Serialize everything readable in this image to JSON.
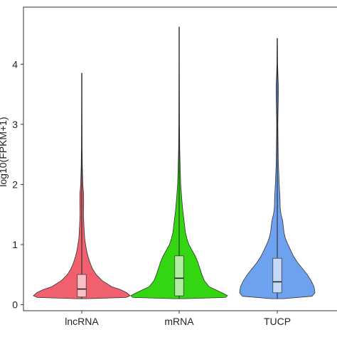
{
  "chart_data": {
    "type": "violin",
    "title": "",
    "xlabel": "",
    "ylabel": "log10(FPKM+1)",
    "ylim": [
      -0.1,
      4.95
    ],
    "yticks": [
      0,
      1,
      2,
      3,
      4
    ],
    "grid": false,
    "legend": "none",
    "categories": [
      "lncRNA",
      "mRNA",
      "TUCP"
    ],
    "series": [
      {
        "category": "lncRNA",
        "color": "#F0606E",
        "min": 0.1,
        "max": 3.85,
        "box": {
          "q1": 0.13,
          "median": 0.26,
          "q3": 0.5
        },
        "profile": [
          [
            0.1,
            0.1
          ],
          [
            0.12,
            0.92
          ],
          [
            0.15,
            1.0
          ],
          [
            0.2,
            0.93
          ],
          [
            0.25,
            0.8
          ],
          [
            0.3,
            0.62
          ],
          [
            0.4,
            0.42
          ],
          [
            0.5,
            0.3
          ],
          [
            0.6,
            0.22
          ],
          [
            0.7,
            0.17
          ],
          [
            0.8,
            0.13
          ],
          [
            0.9,
            0.1
          ],
          [
            1.0,
            0.08
          ],
          [
            1.1,
            0.06
          ],
          [
            1.3,
            0.045
          ],
          [
            1.5,
            0.035
          ],
          [
            1.7,
            0.04
          ],
          [
            1.85,
            0.038
          ],
          [
            2.0,
            0.022
          ],
          [
            2.3,
            0.012
          ],
          [
            2.6,
            0.008
          ],
          [
            3.0,
            0.006
          ],
          [
            3.5,
            0.005
          ],
          [
            3.85,
            0.004
          ]
        ]
      },
      {
        "category": "mRNA",
        "color": "#33D611",
        "min": 0.1,
        "max": 4.62,
        "box": {
          "q1": 0.15,
          "median": 0.44,
          "q3": 0.81
        },
        "profile": [
          [
            0.1,
            0.1
          ],
          [
            0.12,
            0.96
          ],
          [
            0.15,
            1.0
          ],
          [
            0.2,
            0.88
          ],
          [
            0.3,
            0.62
          ],
          [
            0.4,
            0.52
          ],
          [
            0.5,
            0.47
          ],
          [
            0.6,
            0.43
          ],
          [
            0.7,
            0.39
          ],
          [
            0.8,
            0.34
          ],
          [
            0.9,
            0.27
          ],
          [
            1.0,
            0.2
          ],
          [
            1.1,
            0.16
          ],
          [
            1.2,
            0.13
          ],
          [
            1.4,
            0.1
          ],
          [
            1.6,
            0.07
          ],
          [
            1.8,
            0.05
          ],
          [
            2.0,
            0.032
          ],
          [
            2.3,
            0.02
          ],
          [
            2.6,
            0.012
          ],
          [
            3.0,
            0.008
          ],
          [
            3.5,
            0.006
          ],
          [
            4.0,
            0.005
          ],
          [
            4.62,
            0.004
          ]
        ]
      },
      {
        "category": "TUCP",
        "color": "#6EA2EE",
        "min": 0.1,
        "max": 4.43,
        "box": {
          "q1": 0.2,
          "median": 0.38,
          "q3": 0.77
        },
        "profile": [
          [
            0.1,
            0.12
          ],
          [
            0.14,
            0.72
          ],
          [
            0.2,
            0.78
          ],
          [
            0.3,
            0.76
          ],
          [
            0.4,
            0.7
          ],
          [
            0.5,
            0.62
          ],
          [
            0.6,
            0.52
          ],
          [
            0.7,
            0.42
          ],
          [
            0.8,
            0.34
          ],
          [
            0.9,
            0.28
          ],
          [
            1.0,
            0.22
          ],
          [
            1.1,
            0.17
          ],
          [
            1.2,
            0.14
          ],
          [
            1.4,
            0.11
          ],
          [
            1.5,
            0.08
          ],
          [
            1.6,
            0.06
          ],
          [
            1.8,
            0.055
          ],
          [
            2.0,
            0.04
          ],
          [
            2.4,
            0.02
          ],
          [
            3.0,
            0.012
          ],
          [
            3.4,
            0.02
          ],
          [
            3.6,
            0.025
          ],
          [
            3.8,
            0.015
          ],
          [
            4.0,
            0.008
          ],
          [
            4.43,
            0.004
          ]
        ]
      }
    ]
  }
}
